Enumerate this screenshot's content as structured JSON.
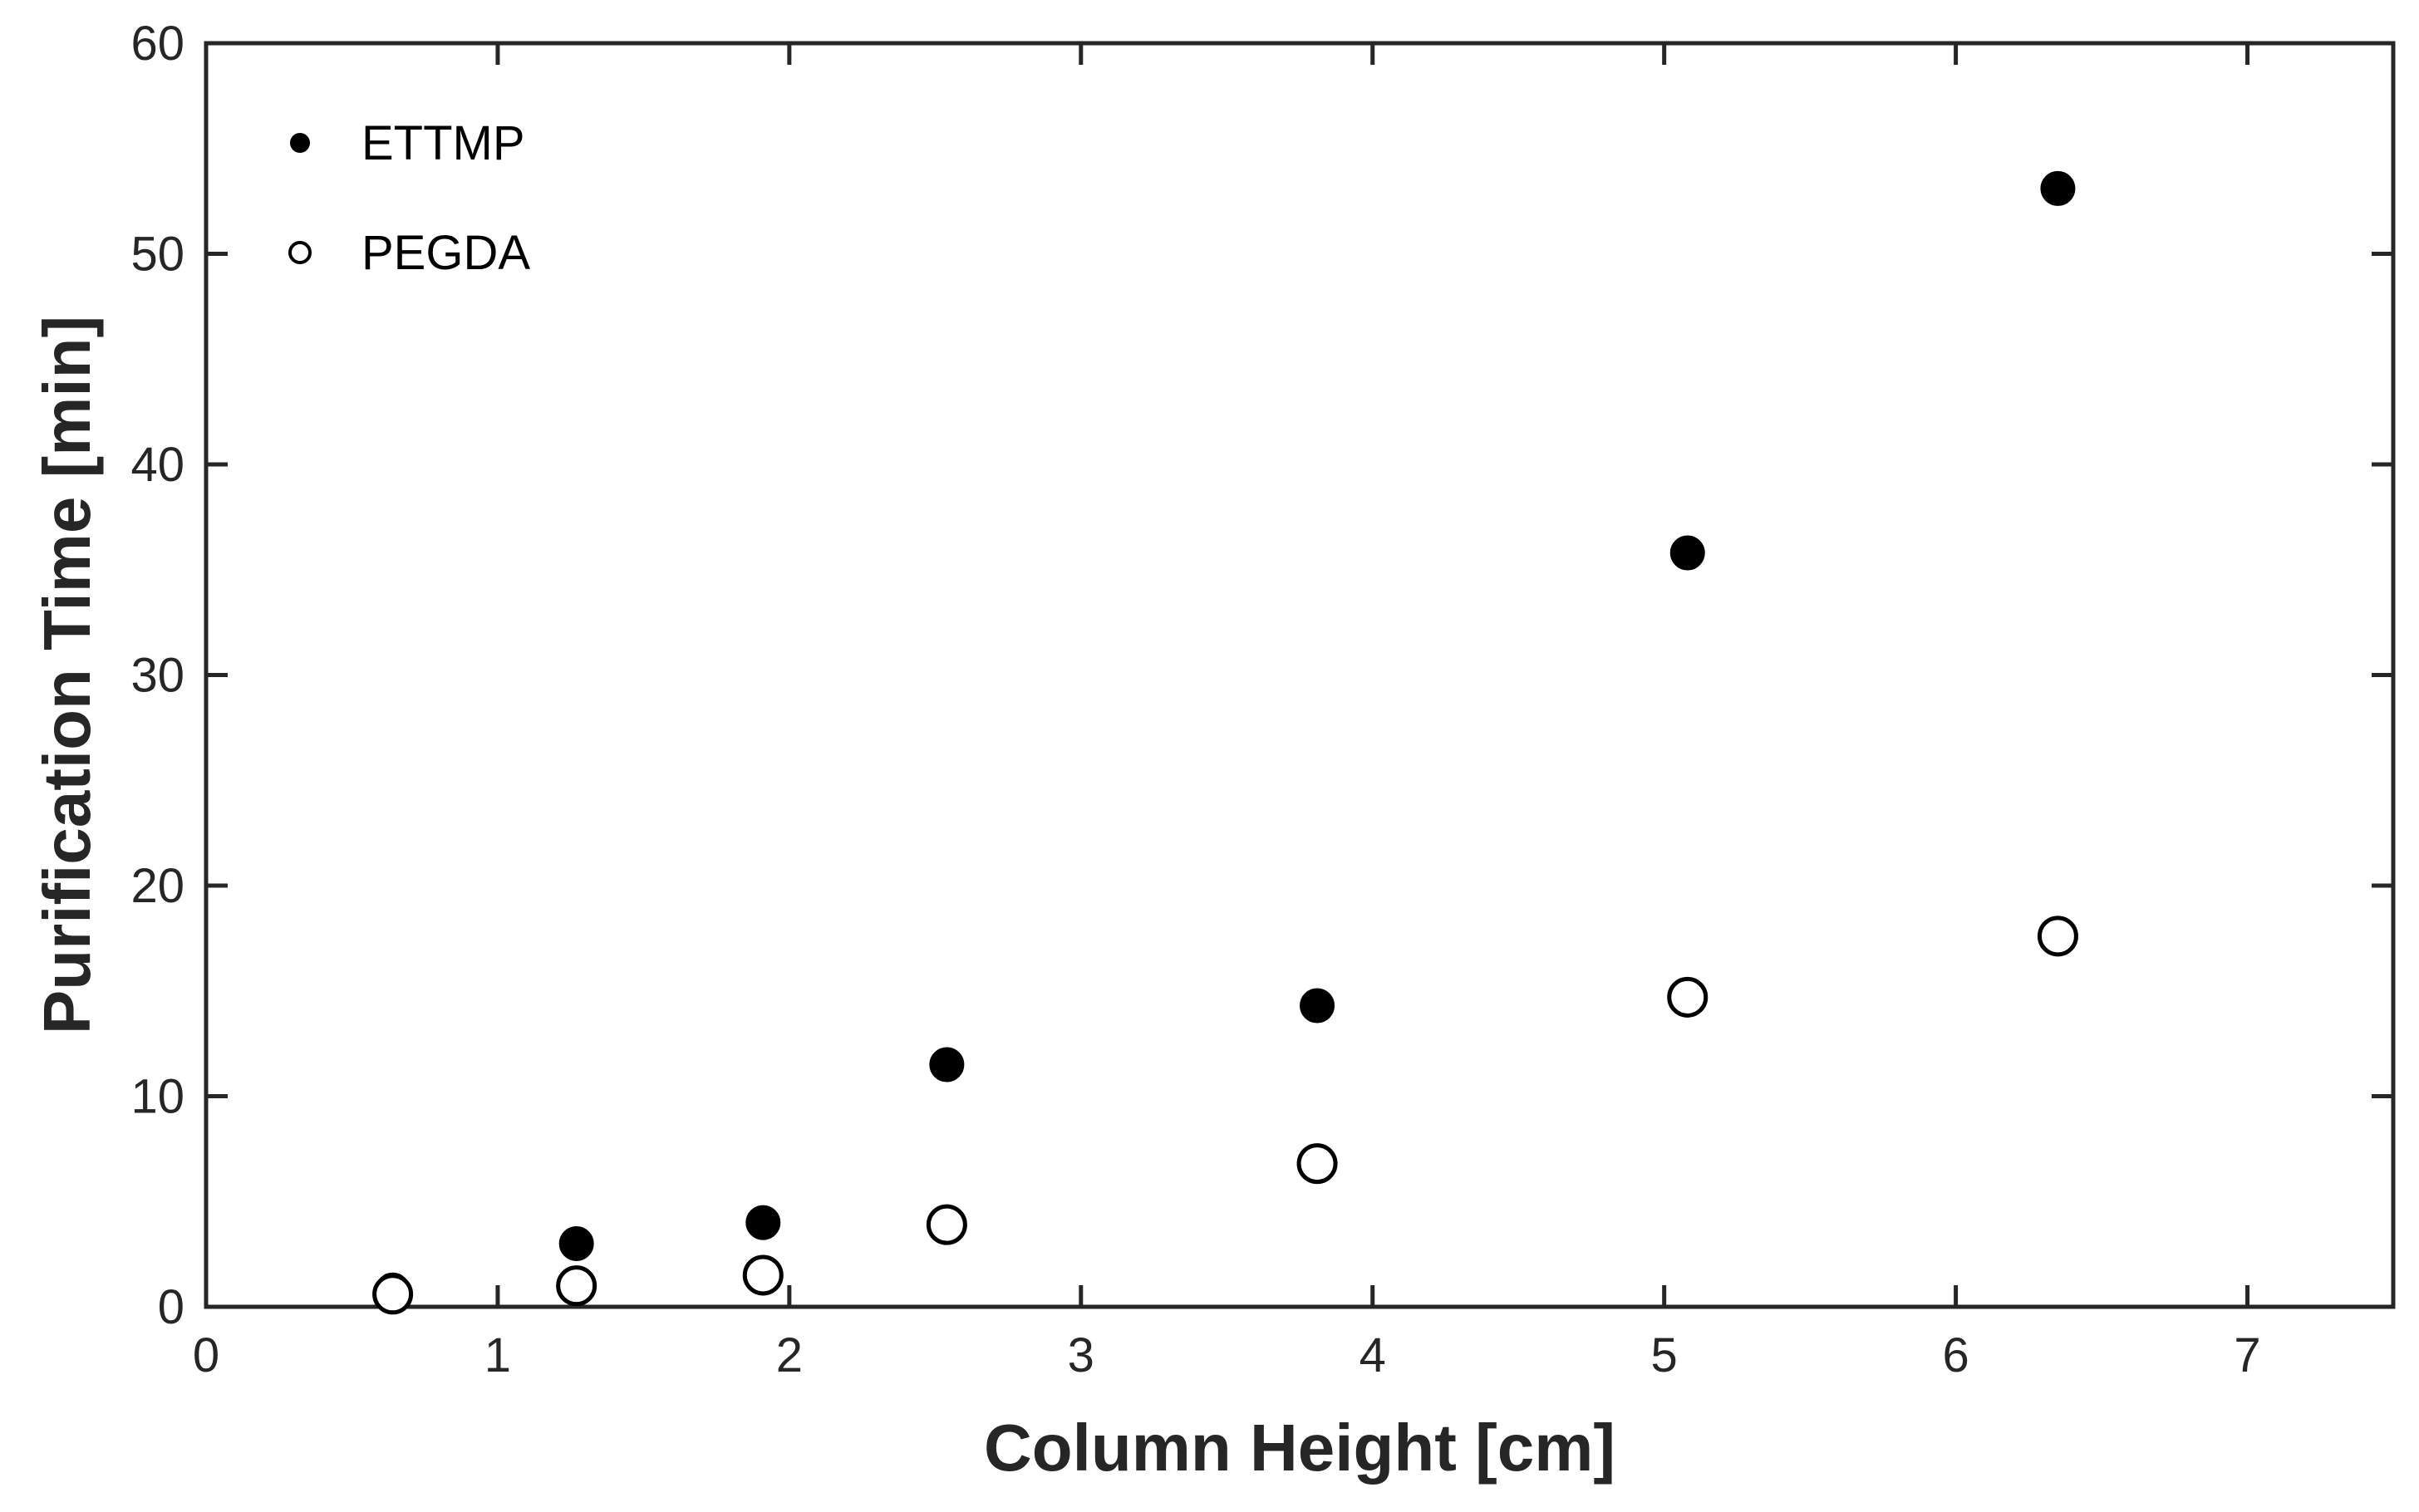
{
  "chart_data": {
    "type": "scatter",
    "xlabel": "Column Height [cm]",
    "ylabel": "Purification Time [min]",
    "xlim": [
      0,
      7.5
    ],
    "ylim": [
      0,
      60
    ],
    "xticks": [
      0,
      1,
      2,
      3,
      4,
      5,
      6,
      7
    ],
    "yticks": [
      0,
      10,
      20,
      30,
      40,
      50,
      60
    ],
    "grid": false,
    "legend_position": "top-left",
    "series": [
      {
        "name": "ETTMP",
        "marker": "filled-circle",
        "color": "#000000",
        "points": [
          {
            "x": 0.64,
            "y": 0.8
          },
          {
            "x": 1.27,
            "y": 3.0
          },
          {
            "x": 1.91,
            "y": 4.0
          },
          {
            "x": 2.54,
            "y": 11.5
          },
          {
            "x": 3.81,
            "y": 14.3
          },
          {
            "x": 5.08,
            "y": 35.8
          },
          {
            "x": 6.35,
            "y": 53.1
          }
        ]
      },
      {
        "name": "PEGDA",
        "marker": "open-circle",
        "color": "#000000",
        "points": [
          {
            "x": 0.64,
            "y": 0.6
          },
          {
            "x": 1.27,
            "y": 1.0
          },
          {
            "x": 1.91,
            "y": 1.5
          },
          {
            "x": 2.54,
            "y": 3.9
          },
          {
            "x": 3.81,
            "y": 6.8
          },
          {
            "x": 5.08,
            "y": 14.7
          },
          {
            "x": 6.35,
            "y": 17.6
          }
        ]
      }
    ]
  }
}
